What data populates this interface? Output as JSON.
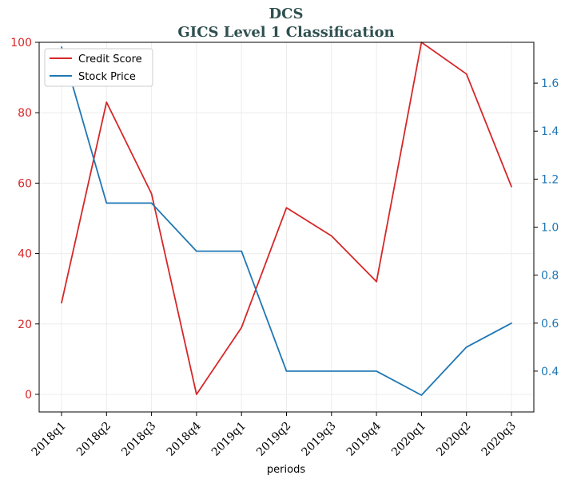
{
  "chart_data": {
    "type": "line",
    "title": "DCS",
    "subtitle": "GICS Level 1 Classification",
    "xlabel": "periods",
    "categories": [
      "2018q1",
      "2018q2",
      "2018q3",
      "2018q4",
      "2019q1",
      "2019q2",
      "2019q3",
      "2019q4",
      "2020q1",
      "2020q2",
      "2020q3"
    ],
    "left_axis": {
      "ylim": [
        -5,
        100
      ],
      "ticks": [
        0,
        20,
        40,
        60,
        80,
        100
      ],
      "tick_labels": [
        "0",
        "20",
        "40",
        "60",
        "80",
        "100"
      ]
    },
    "right_axis": {
      "ylim": [
        0.23,
        1.77
      ],
      "ticks": [
        0.4,
        0.6,
        0.8,
        1.0,
        1.2,
        1.4,
        1.6
      ],
      "tick_labels": [
        "0.4",
        "0.6",
        "0.8",
        "1.0",
        "1.2",
        "1.4",
        "1.6"
      ]
    },
    "series": [
      {
        "name": "Credit Score",
        "axis": "left",
        "color": "#d62728",
        "values": [
          26,
          83,
          57,
          0,
          19,
          53,
          45,
          32,
          100,
          91,
          59
        ]
      },
      {
        "name": "Stock Price",
        "axis": "right",
        "color": "#1f77b4",
        "values": [
          1.75,
          1.1,
          1.1,
          0.9,
          0.9,
          0.4,
          0.4,
          0.4,
          0.3,
          0.5,
          0.6
        ]
      }
    ],
    "legend_position": "top-left",
    "grid": true
  }
}
